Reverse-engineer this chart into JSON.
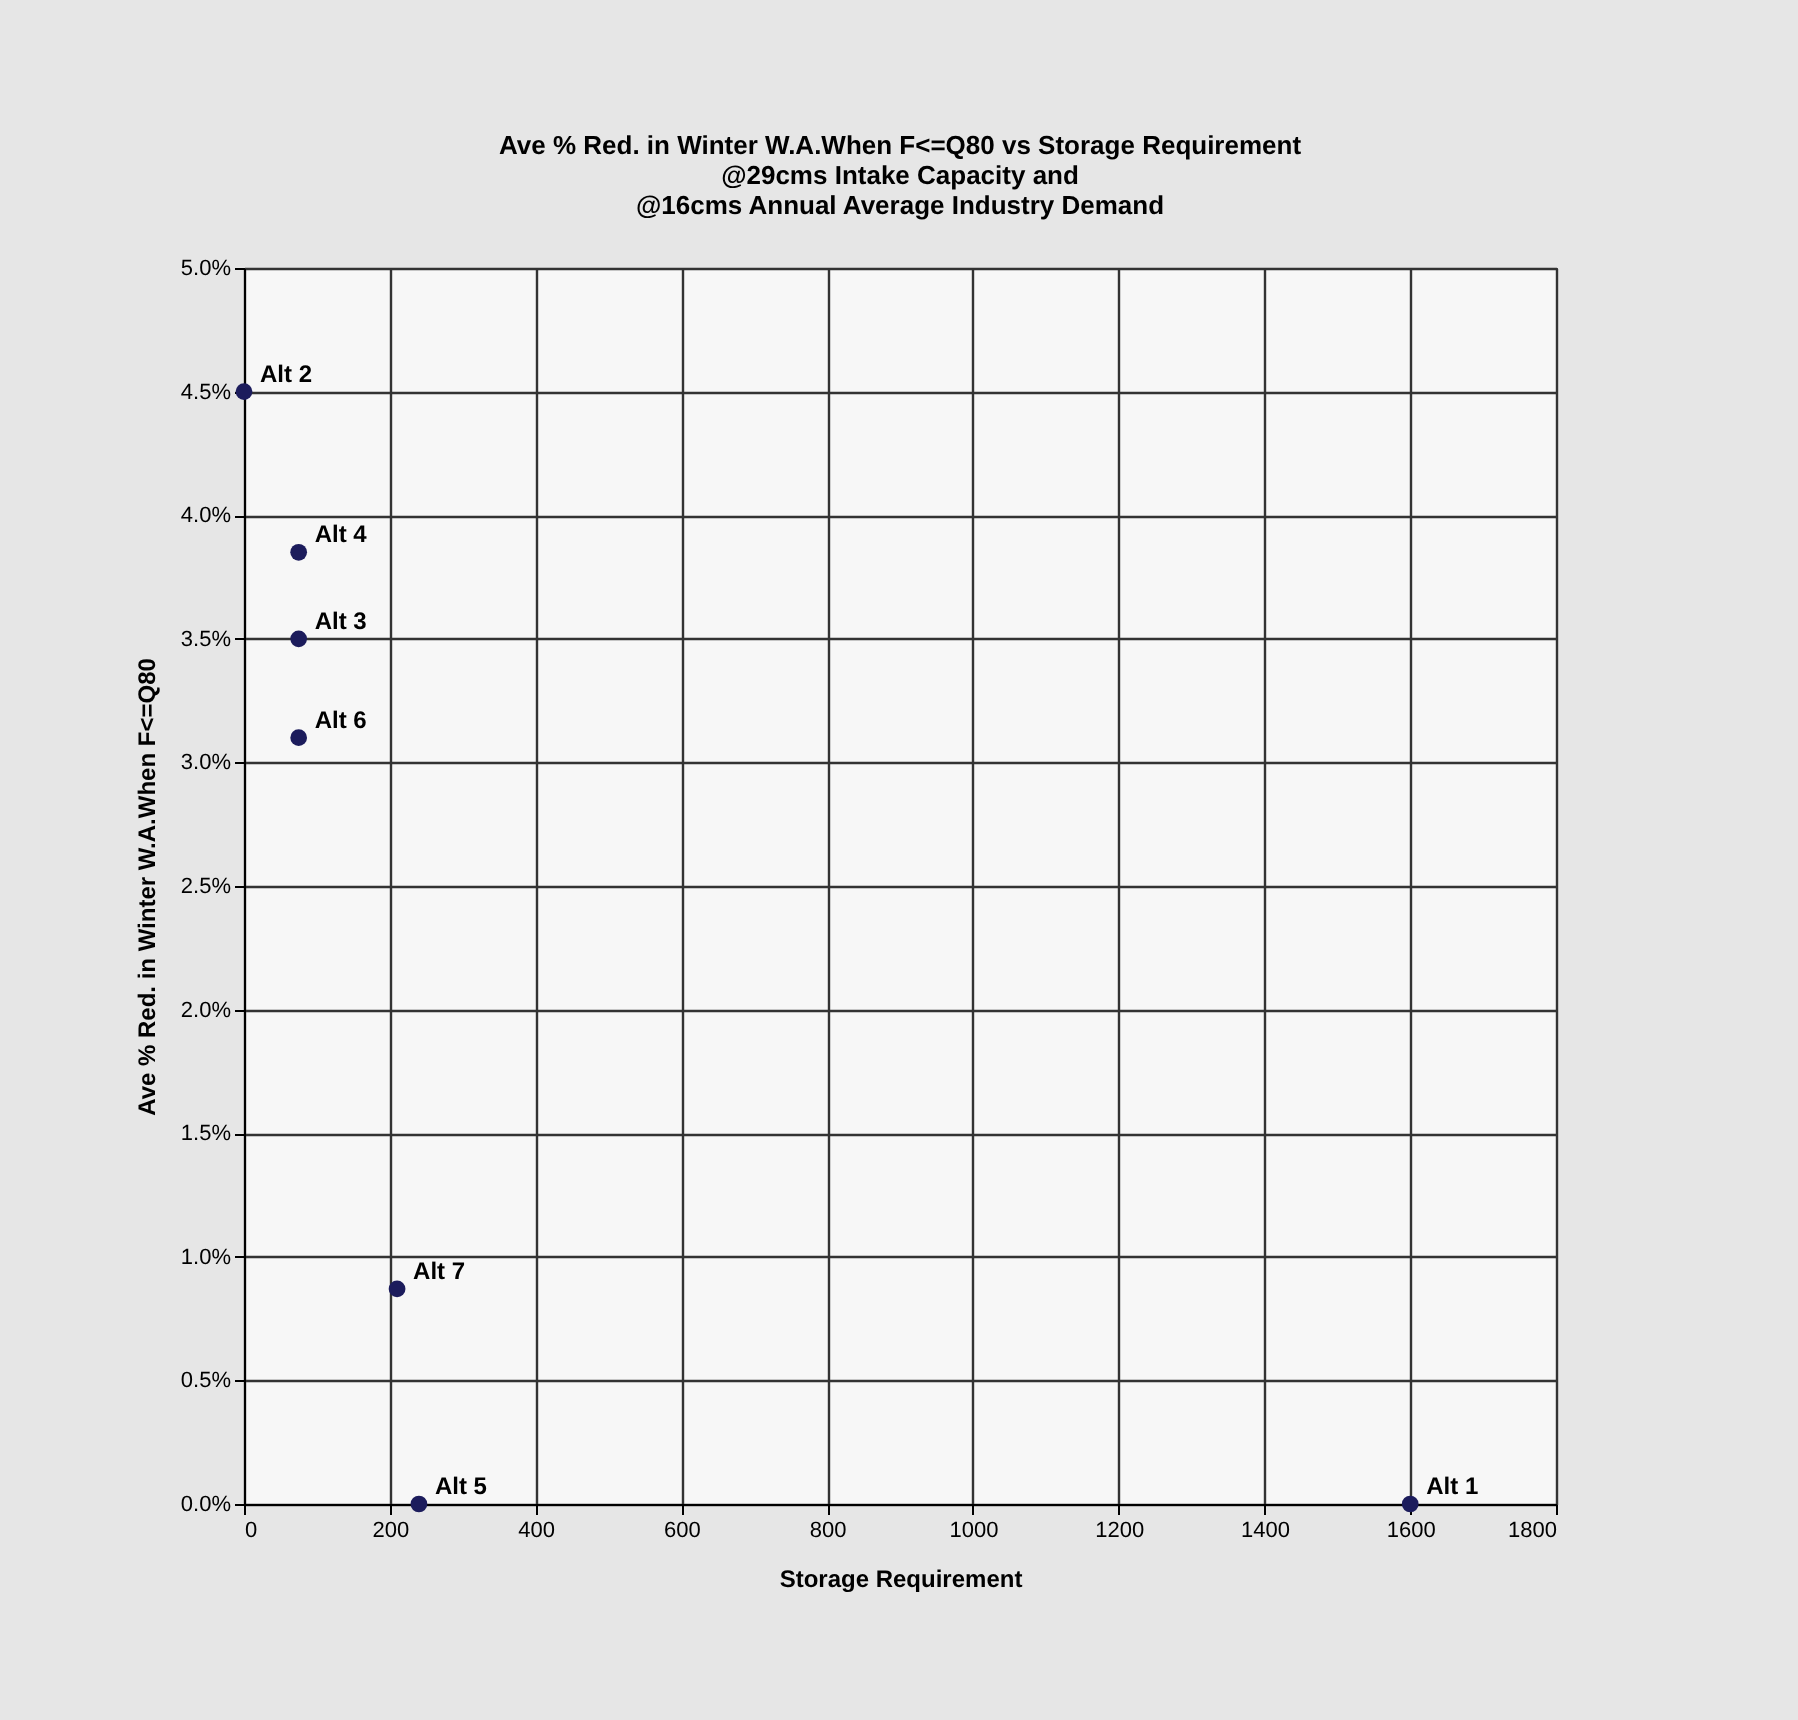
{
  "chart_data": {
    "type": "scatter",
    "title": "Ave % Red. in Winter W.A.When F<=Q80 vs Storage Requirement\n@29cms Intake Capacity and\n@16cms Annual Average Industry Demand",
    "xlabel": "Storage Requirement",
    "ylabel": "Ave % Red. in Winter W.A.When F<=Q80",
    "x": [
      0,
      75,
      75,
      75,
      210,
      240,
      1600
    ],
    "series": [
      {
        "color": "#1c1c5c",
        "values": [
          4.5,
          3.85,
          3.5,
          3.1,
          0.87,
          0,
          0
        ]
      }
    ],
    "annotations": [
      {
        "text": "Alt 2",
        "x": 0,
        "y": 4.5
      },
      {
        "text": "Alt 4",
        "x": 75,
        "y": 3.85
      },
      {
        "text": "Alt 3",
        "x": 75,
        "y": 3.5
      },
      {
        "text": "Alt 6",
        "x": 75,
        "y": 3.1
      },
      {
        "text": "Alt 7",
        "x": 210,
        "y": 0.87
      },
      {
        "text": "Alt 5",
        "x": 240,
        "y": 0
      },
      {
        "text": "Alt 1",
        "x": 1600,
        "y": 0
      }
    ],
    "xlim": [
      0,
      1800
    ],
    "xticks": [
      0,
      200,
      400,
      600,
      800,
      1000,
      1200,
      1400,
      1600,
      1800
    ],
    "ylim": [
      0,
      5
    ],
    "yticks": [
      {
        "value": 0,
        "label": "0.0%"
      },
      {
        "value": 0.5,
        "label": "0.5%"
      },
      {
        "value": 1,
        "label": "1.0%"
      },
      {
        "value": 1.5,
        "label": "1.5%"
      },
      {
        "value": 2,
        "label": "2.0%"
      },
      {
        "value": 2.5,
        "label": "2.5%"
      },
      {
        "value": 3,
        "label": "3.0%"
      },
      {
        "value": 3.5,
        "label": "3.5%"
      },
      {
        "value": 4,
        "label": "4.0%"
      },
      {
        "value": 4.5,
        "label": "4.5%"
      },
      {
        "value": 5,
        "label": "5.0%"
      }
    ],
    "grid": true,
    "marker": "circle"
  }
}
